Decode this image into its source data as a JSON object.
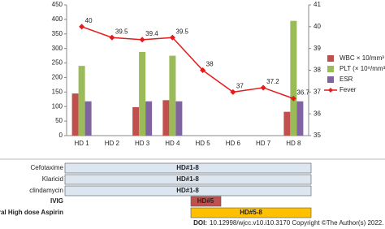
{
  "chart_data": {
    "type": "bar",
    "categories": [
      "HD 1",
      "HD 2",
      "HD 3",
      "HD 4",
      "HD 5",
      "HD 6",
      "HD 7",
      "HD 8"
    ],
    "series": [
      {
        "name": "WBC × 10/mm³",
        "color": "#c0504d",
        "values": [
          145,
          null,
          98,
          122,
          null,
          null,
          null,
          82
        ]
      },
      {
        "name": "PLT (× 10⁹/mm³)",
        "color": "#9bbb59",
        "values": [
          240,
          null,
          288,
          275,
          null,
          null,
          null,
          395
        ]
      },
      {
        "name": "ESR",
        "color": "#8064a2",
        "values": [
          118,
          null,
          118,
          118,
          null,
          null,
          null,
          118
        ]
      },
      {
        "name": "Fever",
        "color": "#e41a1c",
        "type": "line",
        "axis": "y2",
        "values": [
          40,
          39.5,
          39.4,
          39.5,
          38,
          37,
          37.2,
          36.7
        ]
      }
    ],
    "ylim": [
      0,
      450
    ],
    "yticks": [
      0,
      50,
      100,
      150,
      200,
      250,
      300,
      350,
      400,
      450
    ],
    "y2lim": [
      35,
      41
    ],
    "y2ticks": [
      35,
      36,
      37,
      38,
      39,
      40,
      41
    ],
    "grid": false,
    "legend": "right"
  },
  "timeline": [
    {
      "label": "Cefotaxime",
      "text": "HD#1-8"
    },
    {
      "label": "Klaricid",
      "text": "HD#1-8"
    },
    {
      "label": "clindamycin",
      "text": "HD#1-8"
    },
    {
      "label": "IVIG",
      "text": "HD#5"
    },
    {
      "label": "Oral High dose Aspirin",
      "text": "HD#5-8"
    }
  ],
  "footer": {
    "doi_label": "DOI:",
    "text": "10.12998/wjcc.v10.i10.3170 Copyright ©The Author(s) 2022."
  }
}
